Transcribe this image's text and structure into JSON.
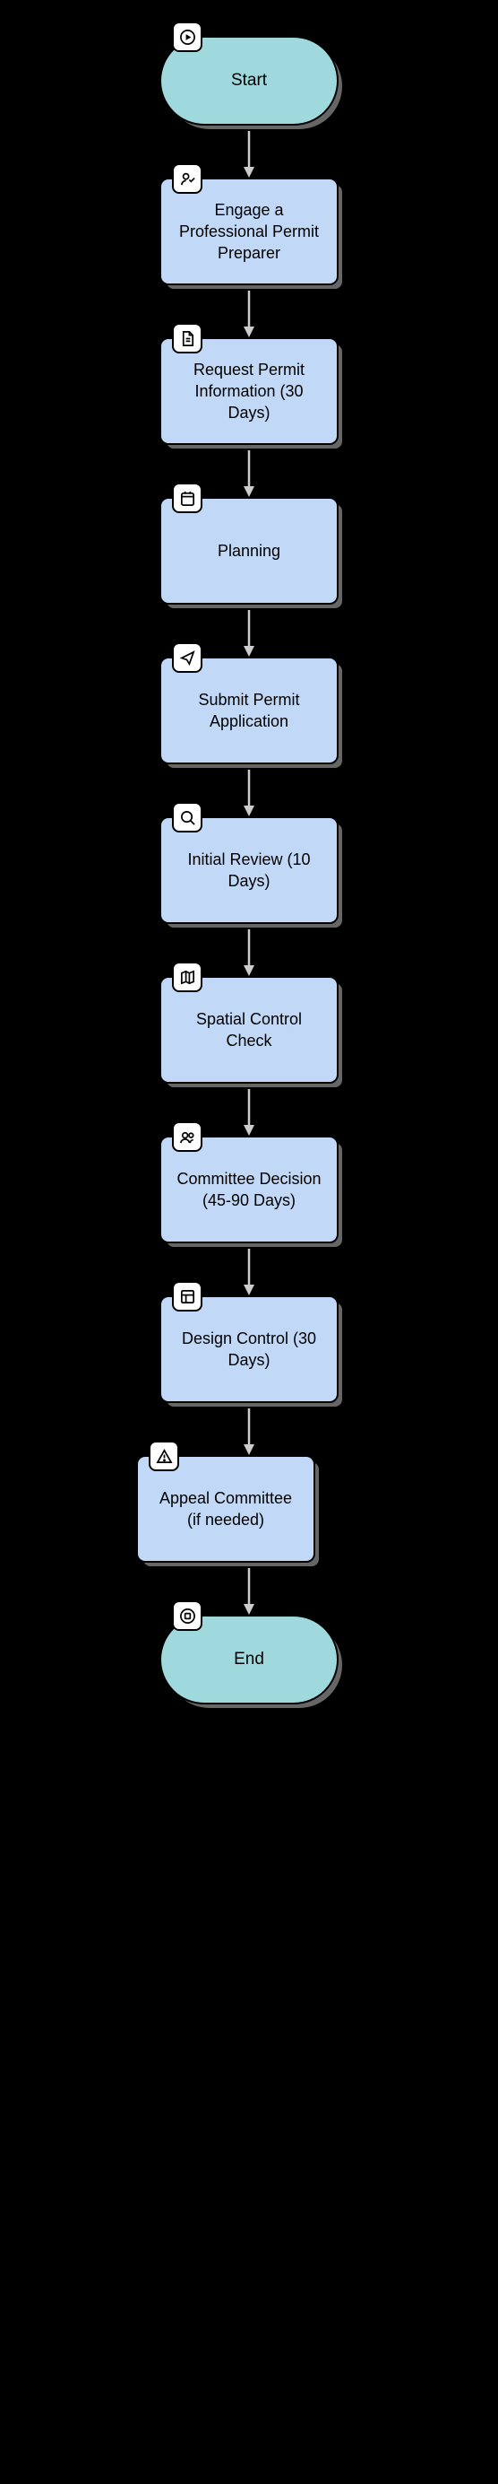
{
  "diagram": {
    "type": "flowchart",
    "background_color": "#000000",
    "node_border_color": "#000000",
    "shadow_color": "#666666",
    "arrow_color": "#000000",
    "arrow_stroke_width": 2,
    "terminal_fill": "#9fd9de",
    "process_fill": "#c1d9f7",
    "icon_badge_fill": "#ffffff",
    "font_family": "Comic Sans MS",
    "label_fontsize": 18,
    "nodes": [
      {
        "id": "start",
        "shape": "terminal",
        "label": "Start",
        "icon": "play"
      },
      {
        "id": "engage",
        "shape": "process",
        "label": "Engage a Professional Permit Preparer",
        "icon": "user-check"
      },
      {
        "id": "request",
        "shape": "process",
        "label": "Request Permit Information (30 Days)",
        "icon": "document"
      },
      {
        "id": "plan",
        "shape": "process",
        "label": "Planning",
        "icon": "calendar"
      },
      {
        "id": "submit",
        "shape": "process",
        "label": "Submit Permit Application",
        "icon": "send"
      },
      {
        "id": "review",
        "shape": "process",
        "label": "Initial Review (10 Days)",
        "icon": "search"
      },
      {
        "id": "spatial",
        "shape": "process",
        "label": "Spatial Control Check",
        "icon": "map"
      },
      {
        "id": "commit",
        "shape": "process",
        "label": "Committee Decision (45-90 Days)",
        "icon": "users"
      },
      {
        "id": "design",
        "shape": "process",
        "label": "Design Control (30 Days)",
        "icon": "layout"
      },
      {
        "id": "appeal",
        "shape": "process",
        "label": "Appeal Committee (if needed)",
        "icon": "alert",
        "offset": "left"
      },
      {
        "id": "end",
        "shape": "terminal",
        "label": "End",
        "icon": "stop"
      }
    ]
  }
}
